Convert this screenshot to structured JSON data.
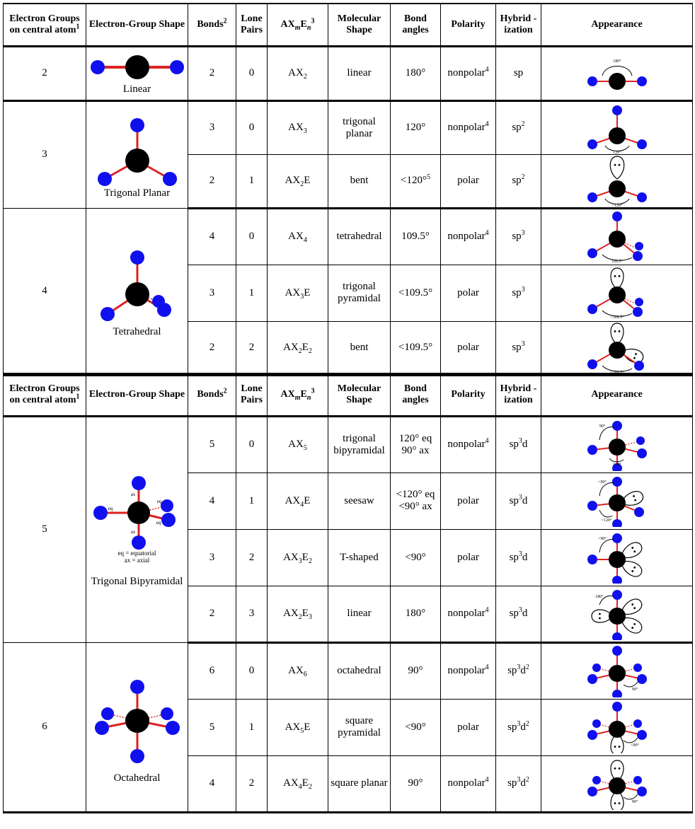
{
  "headers": {
    "egroups": "Electron Groups on central atom",
    "egroups_sup": "1",
    "egshape": "Electron-Group Shape",
    "bonds": "Bonds",
    "bonds_sup": "2",
    "lonepairs": "Lone Pairs",
    "ax_a": "AX",
    "ax_m": "m",
    "ax_e": "E",
    "ax_n": "n",
    "ax_sup": "3",
    "molshape": "Molecular Shape",
    "bondangles": "Bond angles",
    "polarity": "Polarity",
    "hybrid": "Hybrid -ization",
    "appearance": "Appearance"
  },
  "colors": {
    "outer_atom": "#1010ee",
    "central_atom": "#000000",
    "bond": "#dd2222"
  },
  "table1": [
    {
      "egroups": "2",
      "shape_label": "Linear",
      "rows": [
        {
          "bonds": "2",
          "lp": "0",
          "ax_base": "AX",
          "ax_sub1": "2",
          "ax_e": "",
          "ax_sub2": "",
          "mol": "linear",
          "angle": "180°",
          "angle_sup": "",
          "polar": "nonpolar",
          "polar_sup": "4",
          "hyb": "sp",
          "hyb_sup": "",
          "hyb_tail": "",
          "hyb_sup2": "",
          "angle_label": "180°"
        }
      ]
    },
    {
      "egroups": "3",
      "shape_label": "Trigonal Planar",
      "rows": [
        {
          "bonds": "3",
          "lp": "0",
          "ax_base": "AX",
          "ax_sub1": "3",
          "ax_e": "",
          "ax_sub2": "",
          "mol": "trigonal planar",
          "angle": "120°",
          "angle_sup": "",
          "polar": "nonpolar",
          "polar_sup": "4",
          "hyb": "sp",
          "hyb_sup": "2",
          "hyb_tail": "",
          "hyb_sup2": "",
          "angle_label": "120°"
        },
        {
          "bonds": "2",
          "lp": "1",
          "ax_base": "AX",
          "ax_sub1": "2",
          "ax_e": "E",
          "ax_sub2": "",
          "mol": "bent",
          "angle": "<120°",
          "angle_sup": "5",
          "polar": "polar",
          "polar_sup": "",
          "hyb": "sp",
          "hyb_sup": "2",
          "hyb_tail": "",
          "hyb_sup2": "",
          "angle_label": "<120°"
        }
      ]
    },
    {
      "egroups": "4",
      "shape_label": "Tetrahedral",
      "rows": [
        {
          "bonds": "4",
          "lp": "0",
          "ax_base": "AX",
          "ax_sub1": "4",
          "ax_e": "",
          "ax_sub2": "",
          "mol": "tetrahedral",
          "angle": "109.5°",
          "angle_sup": "",
          "polar": "nonpolar",
          "polar_sup": "4",
          "hyb": "sp",
          "hyb_sup": "3",
          "hyb_tail": "",
          "hyb_sup2": "",
          "angle_label": "109.5°"
        },
        {
          "bonds": "3",
          "lp": "1",
          "ax_base": "AX",
          "ax_sub1": "3",
          "ax_e": "E",
          "ax_sub2": "",
          "mol": "trigonal pyramidal",
          "angle": "<109.5°",
          "angle_sup": "",
          "polar": "polar",
          "polar_sup": "",
          "hyb": "sp",
          "hyb_sup": "3",
          "hyb_tail": "",
          "hyb_sup2": "",
          "angle_label": "<109.5°"
        },
        {
          "bonds": "2",
          "lp": "2",
          "ax_base": "AX",
          "ax_sub1": "2",
          "ax_e": "E",
          "ax_sub2": "2",
          "mol": "bent",
          "angle": "<109.5°",
          "angle_sup": "",
          "polar": "polar",
          "polar_sup": "",
          "hyb": "sp",
          "hyb_sup": "3",
          "hyb_tail": "",
          "hyb_sup2": "",
          "angle_label": "<109.5°"
        }
      ]
    }
  ],
  "table2": [
    {
      "egroups": "5",
      "shape_label": "Trigonal Bipyramidal",
      "notes": {
        "eq": "eq",
        "ax": "ax",
        "eq_def": "eq = equatorial",
        "ax_def": "ax = axial"
      },
      "rows": [
        {
          "bonds": "5",
          "lp": "0",
          "ax_base": "AX",
          "ax_sub1": "5",
          "ax_e": "",
          "ax_sub2": "",
          "mol": "trigonal bipyramidal",
          "angle": "120° eq 90° ax",
          "angle_sup": "",
          "polar": "nonpolar",
          "polar_sup": "4",
          "hyb": "sp",
          "hyb_sup": "3",
          "hyb_tail": "d",
          "hyb_sup2": "",
          "angle_label": "90°",
          "angle_label2": "120°"
        },
        {
          "bonds": "4",
          "lp": "1",
          "ax_base": "AX",
          "ax_sub1": "4",
          "ax_e": "E",
          "ax_sub2": "",
          "mol": "seesaw",
          "angle": "<120° eq <90° ax",
          "angle_sup": "",
          "polar": "polar",
          "polar_sup": "",
          "hyb": "sp",
          "hyb_sup": "3",
          "hyb_tail": "d",
          "hyb_sup2": "",
          "angle_label": "<90°",
          "angle_label2": "<120°"
        },
        {
          "bonds": "3",
          "lp": "2",
          "ax_base": "AX",
          "ax_sub1": "3",
          "ax_e": "E",
          "ax_sub2": "2",
          "mol": "T-shaped",
          "angle": "<90°",
          "angle_sup": "",
          "polar": "polar",
          "polar_sup": "",
          "hyb": "sp",
          "hyb_sup": "3",
          "hyb_tail": "d",
          "hyb_sup2": "",
          "angle_label": "<90°"
        },
        {
          "bonds": "2",
          "lp": "3",
          "ax_base": "AX",
          "ax_sub1": "2",
          "ax_e": "E",
          "ax_sub2": "3",
          "mol": "linear",
          "angle": "180°",
          "angle_sup": "",
          "polar": "nonpolar",
          "polar_sup": "4",
          "hyb": "sp",
          "hyb_sup": "3",
          "hyb_tail": "d",
          "hyb_sup2": "",
          "angle_label": "180°"
        }
      ]
    },
    {
      "egroups": "6",
      "shape_label": "Octahedral",
      "rows": [
        {
          "bonds": "6",
          "lp": "0",
          "ax_base": "AX",
          "ax_sub1": "6",
          "ax_e": "",
          "ax_sub2": "",
          "mol": "octahedral",
          "angle": "90°",
          "angle_sup": "",
          "polar": "nonpolar",
          "polar_sup": "4",
          "hyb": "sp",
          "hyb_sup": "3",
          "hyb_tail": "d",
          "hyb_sup2": "2",
          "angle_label": "90°"
        },
        {
          "bonds": "5",
          "lp": "1",
          "ax_base": "AX",
          "ax_sub1": "5",
          "ax_e": "E",
          "ax_sub2": "",
          "mol": "square pyramidal",
          "angle": "<90°",
          "angle_sup": "",
          "polar": "polar",
          "polar_sup": "",
          "hyb": "sp",
          "hyb_sup": "3",
          "hyb_tail": "d",
          "hyb_sup2": "2",
          "angle_label": "<90°"
        },
        {
          "bonds": "4",
          "lp": "2",
          "ax_base": "AX",
          "ax_sub1": "4",
          "ax_e": "E",
          "ax_sub2": "2",
          "mol": "square planar",
          "angle": "90°",
          "angle_sup": "",
          "polar": "nonpolar",
          "polar_sup": "4",
          "hyb": "sp",
          "hyb_sup": "3",
          "hyb_tail": "d",
          "hyb_sup2": "2",
          "angle_label": "90°"
        }
      ]
    }
  ]
}
